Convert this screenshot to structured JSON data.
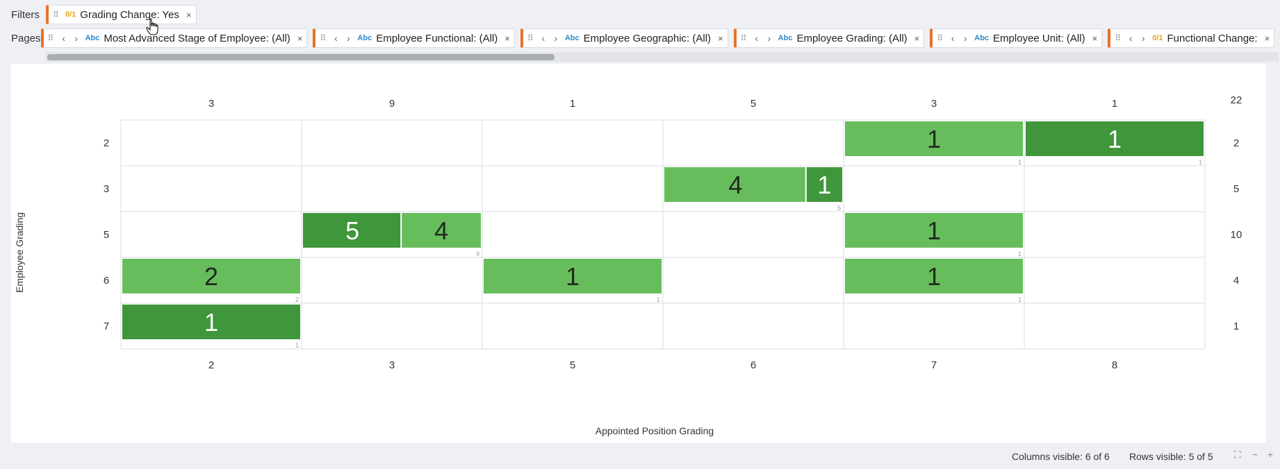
{
  "filters": {
    "label": "Filters",
    "items": [
      {
        "type_tag": "0/1",
        "text": "Grading Change: Yes"
      }
    ]
  },
  "pages": {
    "label": "Pages",
    "items": [
      {
        "type_tag": "Abc",
        "text": "Most Advanced Stage of Employee: (All)"
      },
      {
        "type_tag": "Abc",
        "text": "Employee Functional: (All)"
      },
      {
        "type_tag": "Abc",
        "text": "Employee Geographic: (All)"
      },
      {
        "type_tag": "Abc",
        "text": "Employee Grading: (All)"
      },
      {
        "type_tag": "Abc",
        "text": "Employee Unit: (All)"
      },
      {
        "type_tag": "0/1",
        "text": "Functional Change:"
      }
    ]
  },
  "icons": {
    "grip": "drag-handle-icon",
    "prev": "chevron-left-icon",
    "next": "chevron-right-icon",
    "close": "close-icon",
    "fullscreen": "expand-icon",
    "zoom_out": "minus-icon",
    "zoom_in": "plus-icon"
  },
  "colors": {
    "light_green": "#67bd5c",
    "dark_green": "#40963a",
    "filter_accent": "#e8712a"
  },
  "chart_data": {
    "type": "heatmap",
    "xlabel": "Appointed Position Grading",
    "ylabel": "Employee Grading",
    "x_categories": [
      "2",
      "3",
      "5",
      "6",
      "7",
      "8"
    ],
    "y_categories": [
      "2",
      "3",
      "5",
      "6",
      "7"
    ],
    "column_totals": [
      "3",
      "9",
      "1",
      "5",
      "3",
      "1"
    ],
    "row_totals": [
      "2",
      "5",
      "10",
      "4",
      "1"
    ],
    "grand_total": "22",
    "cells": [
      {
        "x": "7",
        "y": "2",
        "segments": [
          {
            "value": "1",
            "shade": "light"
          }
        ],
        "count": "1"
      },
      {
        "x": "8",
        "y": "2",
        "segments": [
          {
            "value": "1",
            "shade": "dark"
          }
        ],
        "count": "1"
      },
      {
        "x": "6",
        "y": "3",
        "segments": [
          {
            "value": "4",
            "shade": "light"
          },
          {
            "value": "1",
            "shade": "dark"
          }
        ],
        "count": "5"
      },
      {
        "x": "3",
        "y": "5",
        "segments": [
          {
            "value": "5",
            "shade": "dark"
          },
          {
            "value": "4",
            "shade": "light"
          }
        ],
        "count": "9"
      },
      {
        "x": "7",
        "y": "5",
        "segments": [
          {
            "value": "1",
            "shade": "light"
          }
        ],
        "count": "1"
      },
      {
        "x": "2",
        "y": "6",
        "segments": [
          {
            "value": "2",
            "shade": "light"
          }
        ],
        "count": "2"
      },
      {
        "x": "5",
        "y": "6",
        "segments": [
          {
            "value": "1",
            "shade": "light"
          }
        ],
        "count": "1"
      },
      {
        "x": "7",
        "y": "6",
        "segments": [
          {
            "value": "1",
            "shade": "light"
          }
        ],
        "count": "1"
      },
      {
        "x": "2",
        "y": "7",
        "segments": [
          {
            "value": "1",
            "shade": "dark"
          }
        ],
        "count": "1"
      }
    ]
  },
  "status": {
    "columns_visible": "Columns visible: 6 of 6",
    "rows_visible": "Rows visible: 5 of 5"
  }
}
